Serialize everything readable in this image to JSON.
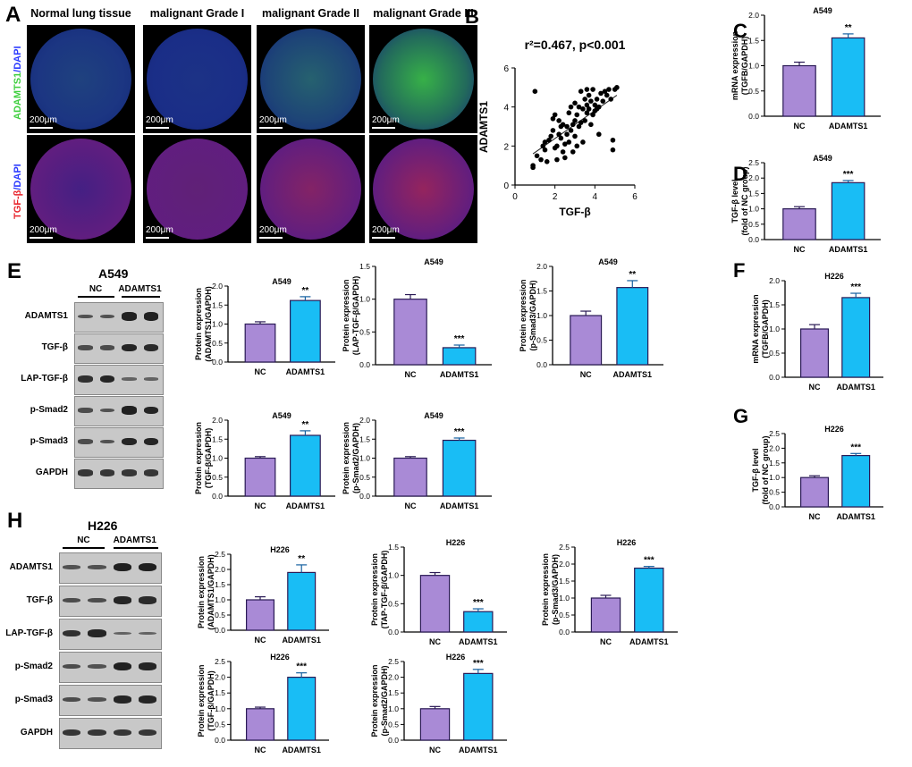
{
  "panels": {
    "A": {
      "label": "A",
      "columns": [
        "Normal lung tissue",
        "malignant Grade I",
        "malignant Grade II",
        "malignant Grade III"
      ],
      "row1_label": [
        "ADAMTS1",
        "/",
        "DAPI"
      ],
      "row2_label": [
        "TGF-β",
        "/",
        "DAPI"
      ],
      "scale": "200μm",
      "colors": {
        "green": "#3ecf3e",
        "blue": "#2b3aff",
        "red": "#e8232b"
      }
    },
    "E_blot": {
      "label": "E",
      "title": "A549",
      "groups": [
        "NC",
        "ADAMTS1"
      ],
      "rows": [
        "ADAMTS1",
        "TGF-β",
        "LAP-TGF-β",
        "p-Smad2",
        "p-Smad3",
        "GAPDH"
      ]
    },
    "H_blot": {
      "label": "H",
      "title": "H226",
      "groups": [
        "NC",
        "ADAMTS1"
      ],
      "rows": [
        "ADAMTS1",
        "TGF-β",
        "LAP-TGF-β",
        "p-Smad2",
        "p-Smad3",
        "GAPDH"
      ]
    }
  },
  "colors": {
    "nc_bar": "#a98ad6",
    "adamts_bar": "#19bdf5",
    "axis": "#000000"
  },
  "chart_data": [
    {
      "id": "B",
      "label": "B",
      "type": "scatter",
      "title": "r²=0.467, p<0.001",
      "xlabel": "TGF-β",
      "ylabel": "ADAMTS1",
      "xlim": [
        0,
        6
      ],
      "ylim": [
        0,
        6
      ],
      "xticks": [
        "0",
        "2",
        "4",
        "6"
      ],
      "yticks": [
        "0",
        "2",
        "4",
        "6"
      ],
      "trend": [
        [
          0.9,
          1.6
        ],
        [
          5.1,
          4.6
        ]
      ],
      "points": [
        [
          0.9,
          0.9
        ],
        [
          0.9,
          1.0
        ],
        [
          1.0,
          4.8
        ],
        [
          1.1,
          1.5
        ],
        [
          1.3,
          1.3
        ],
        [
          1.4,
          2.0
        ],
        [
          1.5,
          2.2
        ],
        [
          1.5,
          1.8
        ],
        [
          1.6,
          1.2
        ],
        [
          1.7,
          2.3
        ],
        [
          1.8,
          2.5
        ],
        [
          1.9,
          2.8
        ],
        [
          1.9,
          3.4
        ],
        [
          2.0,
          1.9
        ],
        [
          2.0,
          3.6
        ],
        [
          2.1,
          2.0
        ],
        [
          2.1,
          1.3
        ],
        [
          2.2,
          2.6
        ],
        [
          2.3,
          3.0
        ],
        [
          2.3,
          2.4
        ],
        [
          2.4,
          1.7
        ],
        [
          2.4,
          3.1
        ],
        [
          2.5,
          2.1
        ],
        [
          2.5,
          1.4
        ],
        [
          2.6,
          3.0
        ],
        [
          2.6,
          2.6
        ],
        [
          2.7,
          2.2
        ],
        [
          2.7,
          3.7
        ],
        [
          2.8,
          4.0
        ],
        [
          2.8,
          2.8
        ],
        [
          2.9,
          3.1
        ],
        [
          2.9,
          1.7
        ],
        [
          3.0,
          3.3
        ],
        [
          3.0,
          2.5
        ],
        [
          3.0,
          4.2
        ],
        [
          3.1,
          2.0
        ],
        [
          3.1,
          3.6
        ],
        [
          3.2,
          4.0
        ],
        [
          3.2,
          3.0
        ],
        [
          3.3,
          3.2
        ],
        [
          3.3,
          4.8
        ],
        [
          3.4,
          2.2
        ],
        [
          3.4,
          3.9
        ],
        [
          3.5,
          3.3
        ],
        [
          3.5,
          4.4
        ],
        [
          3.6,
          4.1
        ],
        [
          3.6,
          3.7
        ],
        [
          3.7,
          4.6
        ],
        [
          3.7,
          3.9
        ],
        [
          3.8,
          3.1
        ],
        [
          3.8,
          4.3
        ],
        [
          3.9,
          3.6
        ],
        [
          3.9,
          4.9
        ],
        [
          4.0,
          3.8
        ],
        [
          4.0,
          4.1
        ],
        [
          4.1,
          4.4
        ],
        [
          4.1,
          3.9
        ],
        [
          4.2,
          4.0
        ],
        [
          4.2,
          2.6
        ],
        [
          4.3,
          4.7
        ],
        [
          4.4,
          4.3
        ],
        [
          4.5,
          4.8
        ],
        [
          4.6,
          4.6
        ],
        [
          4.7,
          4.9
        ],
        [
          4.8,
          4.4
        ],
        [
          4.9,
          2.3
        ],
        [
          4.9,
          1.8
        ],
        [
          5.0,
          4.9
        ],
        [
          5.1,
          5.0
        ],
        [
          3.6,
          4.9
        ],
        [
          2.2,
          3.3
        ]
      ]
    },
    {
      "id": "C",
      "label": "C",
      "type": "bar",
      "title": "A549",
      "ylabel": [
        "mRNA expression",
        "(TGFB/GAPDH)"
      ],
      "categories": [
        "NC",
        "ADAMTS1"
      ],
      "values": [
        1.0,
        1.55
      ],
      "errors": [
        0.07,
        0.08
      ],
      "ylim": [
        0,
        2.0
      ],
      "yticks": [
        "0.0",
        "0.5",
        "1.0",
        "1.5",
        "2.0"
      ],
      "sig": "**"
    },
    {
      "id": "D",
      "label": "D",
      "type": "bar",
      "title": "A549",
      "ylabel": [
        "TGF-β level",
        "(fold of NC group)"
      ],
      "categories": [
        "NC",
        "ADAMTS1"
      ],
      "values": [
        1.0,
        1.85
      ],
      "errors": [
        0.07,
        0.07
      ],
      "ylim": [
        0,
        2.5
      ],
      "yticks": [
        "0.0",
        "0.5",
        "1.0",
        "1.5",
        "2.0",
        "2.5"
      ],
      "sig": "***"
    },
    {
      "id": "E1",
      "type": "bar",
      "title": "A549",
      "ylabel": [
        "Protein expression",
        "(ADAMTS1/GAPDH)"
      ],
      "categories": [
        "NC",
        "ADAMTS1"
      ],
      "values": [
        1.0,
        1.62
      ],
      "errors": [
        0.06,
        0.1
      ],
      "ylim": [
        0,
        2.0
      ],
      "yticks": [
        "0.0",
        "0.5",
        "1.0",
        "1.5",
        "2.0"
      ],
      "sig": "**"
    },
    {
      "id": "E2",
      "type": "bar",
      "title": "A549",
      "ylabel": [
        "Protein expression",
        "(LAP-TGF-β/GAPDH)"
      ],
      "categories": [
        "NC",
        "ADAMTS1"
      ],
      "values": [
        1.0,
        0.26
      ],
      "errors": [
        0.07,
        0.04
      ],
      "ylim": [
        0,
        1.5
      ],
      "yticks": [
        "0.0",
        "0.5",
        "1.0",
        "1.5"
      ],
      "sig": "***"
    },
    {
      "id": "E3",
      "type": "bar",
      "title": "A549",
      "ylabel": [
        "Protein expression",
        "(p-Smad3/GAPDH)"
      ],
      "categories": [
        "NC",
        "ADAMTS1"
      ],
      "values": [
        1.0,
        1.57
      ],
      "errors": [
        0.09,
        0.14
      ],
      "ylim": [
        0,
        2.0
      ],
      "yticks": [
        "0.0",
        "0.5",
        "1.0",
        "1.5",
        "2.0"
      ],
      "sig": "**"
    },
    {
      "id": "E4",
      "type": "bar",
      "title": "A549",
      "ylabel": [
        "Protein expression",
        "(TGF-β/GAPDH)"
      ],
      "categories": [
        "NC",
        "ADAMTS1"
      ],
      "values": [
        1.0,
        1.6
      ],
      "errors": [
        0.04,
        0.12
      ],
      "ylim": [
        0,
        2.0
      ],
      "yticks": [
        "0.0",
        "0.5",
        "1.0",
        "1.5",
        "2.0"
      ],
      "sig": "**"
    },
    {
      "id": "E5",
      "type": "bar",
      "title": "A549",
      "ylabel": [
        "Protein expression",
        "(p-Smad2/GAPDH)"
      ],
      "categories": [
        "NC",
        "ADAMTS1"
      ],
      "values": [
        1.0,
        1.47
      ],
      "errors": [
        0.04,
        0.06
      ],
      "ylim": [
        0,
        2.0
      ],
      "yticks": [
        "0.0",
        "0.5",
        "1.0",
        "1.5",
        "2.0"
      ],
      "sig": "***"
    },
    {
      "id": "F",
      "label": "F",
      "type": "bar",
      "title": "H226",
      "ylabel": [
        "mRNA expression",
        "(TGFB/GAPDH)"
      ],
      "categories": [
        "NC",
        "ADAMTS1"
      ],
      "values": [
        1.0,
        1.65
      ],
      "errors": [
        0.09,
        0.09
      ],
      "ylim": [
        0,
        2.0
      ],
      "yticks": [
        "0.0",
        "0.5",
        "1.0",
        "1.5",
        "2.0"
      ],
      "sig": "***"
    },
    {
      "id": "G",
      "label": "G",
      "type": "bar",
      "title": "H226",
      "ylabel": [
        "TGF-β level",
        "(fold of NC group)"
      ],
      "categories": [
        "NC",
        "ADAMTS1"
      ],
      "values": [
        1.0,
        1.75
      ],
      "errors": [
        0.06,
        0.07
      ],
      "ylim": [
        0,
        2.5
      ],
      "yticks": [
        "0.0",
        "0.5",
        "1.0",
        "1.5",
        "2.0",
        "2.5"
      ],
      "sig": "***"
    },
    {
      "id": "H1",
      "type": "bar",
      "title": "H226",
      "ylabel": [
        "Protein expression",
        "(ADAMTS1/GAPDH)"
      ],
      "categories": [
        "NC",
        "ADAMTS1"
      ],
      "values": [
        1.0,
        1.9
      ],
      "errors": [
        0.1,
        0.25
      ],
      "ylim": [
        0,
        2.5
      ],
      "yticks": [
        "0.0",
        "0.5",
        "1.0",
        "1.5",
        "2.0",
        "2.5"
      ],
      "sig": "**"
    },
    {
      "id": "H2",
      "type": "bar",
      "title": "H226",
      "ylabel": [
        "Protein expression",
        "(TAP-TGF-β/GAPDH)"
      ],
      "categories": [
        "NC",
        "ADAMTS1"
      ],
      "values": [
        1.0,
        0.36
      ],
      "errors": [
        0.05,
        0.05
      ],
      "ylim": [
        0,
        1.5
      ],
      "yticks": [
        "0.0",
        "0.5",
        "1.0",
        "1.5"
      ],
      "sig": "***"
    },
    {
      "id": "H3",
      "type": "bar",
      "title": "H226",
      "ylabel": [
        "Protein expression",
        "(p-Smad3/GAPDH)"
      ],
      "categories": [
        "NC",
        "ADAMTS1"
      ],
      "values": [
        1.0,
        1.88
      ],
      "errors": [
        0.08,
        0.05
      ],
      "ylim": [
        0,
        2.5
      ],
      "yticks": [
        "0.0",
        "0.5",
        "1.0",
        "1.5",
        "2.0",
        "2.5"
      ],
      "sig": "***"
    },
    {
      "id": "H4",
      "type": "bar",
      "title": "H226",
      "ylabel": [
        "Protein expression",
        "(TGF-β/GAPDH)"
      ],
      "categories": [
        "NC",
        "ADAMTS1"
      ],
      "values": [
        1.0,
        2.0
      ],
      "errors": [
        0.05,
        0.14
      ],
      "ylim": [
        0,
        2.5
      ],
      "yticks": [
        "0.0",
        "0.5",
        "1.0",
        "1.5",
        "2.0",
        "2.5"
      ],
      "sig": "***"
    },
    {
      "id": "H5",
      "type": "bar",
      "title": "H226",
      "ylabel": [
        "Protein expression",
        "(p-Smad2/GAPDH)"
      ],
      "categories": [
        "NC",
        "ADAMTS1"
      ],
      "values": [
        1.0,
        2.12
      ],
      "errors": [
        0.07,
        0.13
      ],
      "ylim": [
        0,
        2.5
      ],
      "yticks": [
        "0.0",
        "0.5",
        "1.0",
        "1.5",
        "2.0",
        "2.5"
      ],
      "sig": "***"
    }
  ]
}
